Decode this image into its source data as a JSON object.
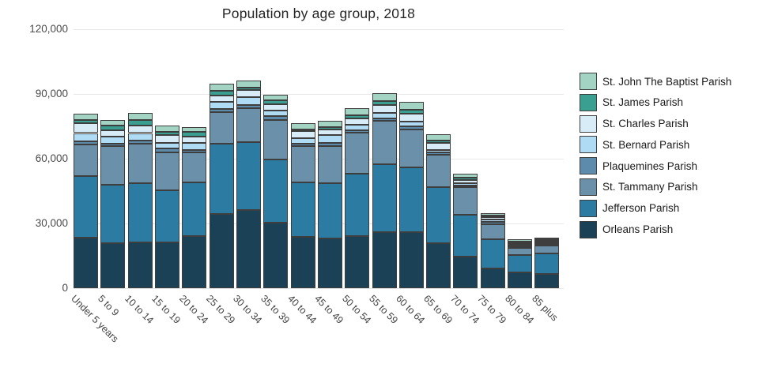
{
  "chart_data": {
    "type": "bar",
    "stacked": true,
    "title": "Population by age group, 2018",
    "xlabel": "",
    "ylabel": "",
    "ylim": [
      0,
      120000
    ],
    "yticks": {
      "values": [
        0,
        30000,
        60000,
        90000,
        120000
      ],
      "labels": [
        "0",
        "30,000",
        "60,000",
        "90,000",
        "120,000"
      ]
    },
    "grid": "horizontal",
    "gridline_color": "#e8e8e8",
    "bar_border_color": "#3e3e3e",
    "background": "#ffffff",
    "legend_position": "right",
    "legend_order": "top of stack listed first",
    "categories": [
      "Under 5 years",
      "5 to 9",
      "10 to 14",
      "15 to 19",
      "20 to 24",
      "25 to 29",
      "30 to 34",
      "35 to 39",
      "40 to 44",
      "45 to 49",
      "50 to 54",
      "55 to 59",
      "60 to 64",
      "65 to 69",
      "70 to 74",
      "75 to 79",
      "80 to 84",
      "85 plus"
    ],
    "series": [
      {
        "name": "Orleans Parish",
        "color": "#1b4156",
        "values": [
          23500,
          20900,
          21200,
          21200,
          24300,
          34500,
          36400,
          30200,
          23900,
          23200,
          24300,
          26000,
          25800,
          21000,
          14500,
          9300,
          7500,
          6700
        ]
      },
      {
        "name": "Jefferson Parish",
        "color": "#2c7ba3",
        "values": [
          28500,
          27100,
          27600,
          24300,
          24900,
          32400,
          31200,
          29300,
          25300,
          25600,
          28700,
          31500,
          30100,
          25900,
          19600,
          13500,
          7900,
          9300
        ]
      },
      {
        "name": "St. Tammany Parish",
        "color": "#6a91a9",
        "values": [
          14600,
          17700,
          18100,
          17600,
          13600,
          14800,
          15900,
          18600,
          16600,
          17200,
          18900,
          19900,
          17800,
          15100,
          12600,
          7000,
          3300,
          3700
        ]
      },
      {
        "name": "Plaquemines Parish",
        "color": "#5c8bab",
        "values": [
          1500,
          1400,
          1400,
          1500,
          1400,
          1200,
          1500,
          1500,
          1100,
          1500,
          1100,
          1100,
          1200,
          1100,
          700,
          800,
          600,
          700
        ]
      },
      {
        "name": "St. Bernard Parish",
        "color": "#afdcf4",
        "values": [
          3800,
          3300,
          3600,
          2900,
          3000,
          3300,
          3700,
          2900,
          2800,
          3300,
          2900,
          2900,
          2400,
          1100,
          1100,
          1100,
          900,
          700
        ]
      },
      {
        "name": "St. Charles Parish",
        "color": "#d8ecf8",
        "values": [
          4400,
          2900,
          3600,
          3300,
          3200,
          3200,
          3300,
          2900,
          3000,
          2600,
          2900,
          3600,
          3600,
          3300,
          1500,
          1100,
          800,
          800
        ]
      },
      {
        "name": "St. James Parish",
        "color": "#3a9e90",
        "values": [
          1800,
          1900,
          2300,
          1500,
          1900,
          2000,
          1100,
          1600,
          1000,
          1400,
          1500,
          1800,
          1700,
          1100,
          1100,
          700,
          700,
          700
        ]
      },
      {
        "name": "St. John The Baptist Parish",
        "color": "#a3d4c3",
        "values": [
          2600,
          2700,
          3300,
          2900,
          2500,
          3300,
          3200,
          2800,
          2900,
          2900,
          3300,
          3600,
          3700,
          2600,
          1800,
          1400,
          1100,
          900
        ]
      }
    ]
  }
}
